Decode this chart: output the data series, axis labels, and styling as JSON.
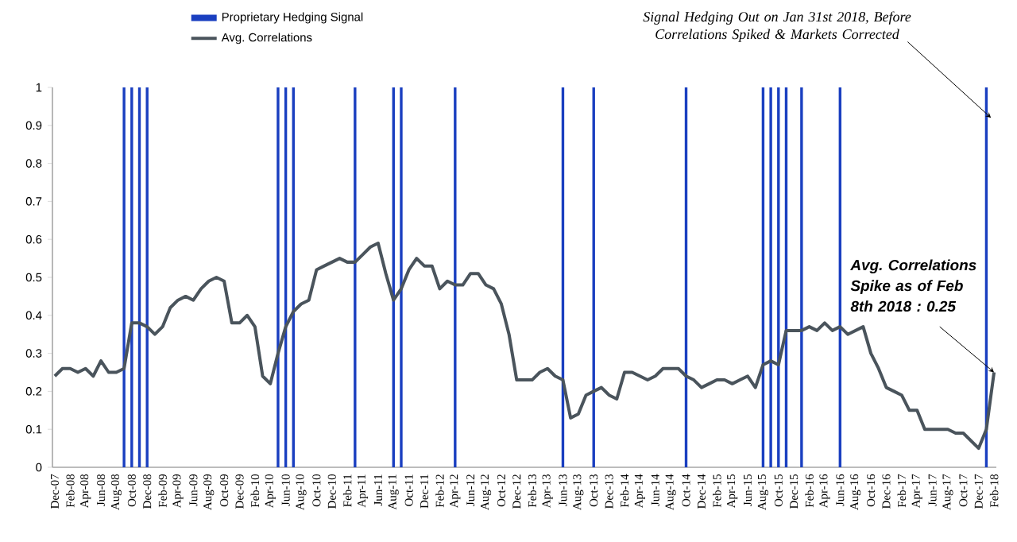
{
  "chart_data": {
    "type": "line",
    "categories": [
      "Dec-07",
      null,
      "Feb-08",
      null,
      "Apr-08",
      null,
      "Jun-08",
      null,
      "Aug-08",
      null,
      "Oct-08",
      null,
      "Dec-08",
      null,
      "Feb-09",
      null,
      "Apr-09",
      null,
      "Jun-09",
      null,
      "Aug-09",
      null,
      "Oct-09",
      null,
      "Dec-09",
      null,
      "Feb-10",
      null,
      "Apr-10",
      null,
      "Jun-10",
      null,
      "Aug-10",
      null,
      "Oct-10",
      null,
      "Dec-10",
      null,
      "Feb-11",
      null,
      "Apr-11",
      null,
      "Jun-11",
      null,
      "Aug-11",
      null,
      "Oct-11",
      null,
      "Dec-11",
      null,
      "Feb-12",
      null,
      "Apr-12",
      null,
      "Jun-12",
      null,
      "Aug-12",
      null,
      "Oct-12",
      null,
      "Dec-12",
      null,
      "Feb-13",
      null,
      "Apr-13",
      null,
      "Jun-13",
      null,
      "Aug-13",
      null,
      "Oct-13",
      null,
      "Dec-13",
      null,
      "Feb-14",
      null,
      "Apr-14",
      null,
      "Jun-14",
      null,
      "Aug-14",
      null,
      "Oct-14",
      null,
      "Dec-14",
      null,
      "Feb-15",
      null,
      "Apr-15",
      null,
      "Jun-15",
      null,
      "Aug-15",
      null,
      "Oct-15",
      null,
      "Dec-15",
      null,
      "Feb-16",
      null,
      "Apr-16",
      null,
      "Jun-16",
      null,
      "Aug-16",
      null,
      "Oct-16",
      null,
      "Dec-16",
      null,
      "Feb-17",
      null,
      "Apr-17",
      null,
      "Jun-17",
      null,
      "Aug-17",
      null,
      "Oct-17",
      null,
      "Dec-17",
      null,
      "Feb-18"
    ],
    "series": [
      {
        "name": "Proprietary Hedging Signal",
        "type": "bar",
        "color": "#1a3fc0",
        "values": [
          null,
          null,
          null,
          null,
          null,
          null,
          null,
          null,
          null,
          1,
          1,
          1,
          1,
          null,
          null,
          null,
          null,
          null,
          null,
          null,
          null,
          null,
          null,
          null,
          null,
          null,
          null,
          null,
          null,
          1,
          1,
          1,
          null,
          null,
          null,
          null,
          null,
          null,
          null,
          1,
          null,
          null,
          null,
          null,
          1,
          1,
          null,
          null,
          null,
          null,
          null,
          null,
          1,
          null,
          null,
          null,
          null,
          null,
          null,
          null,
          null,
          null,
          null,
          null,
          null,
          null,
          1,
          null,
          null,
          null,
          1,
          null,
          null,
          null,
          null,
          null,
          null,
          null,
          null,
          null,
          null,
          null,
          1,
          null,
          null,
          null,
          null,
          null,
          null,
          null,
          null,
          null,
          1,
          1,
          1,
          1,
          null,
          1,
          null,
          null,
          null,
          null,
          1,
          null,
          null,
          null,
          null,
          null,
          null,
          null,
          null,
          null,
          null,
          null,
          null,
          null,
          null,
          null,
          null,
          null,
          null,
          1,
          null
        ]
      },
      {
        "name": "Avg. Correlations",
        "color": "#4a545c",
        "values": [
          0.24,
          0.26,
          0.26,
          0.25,
          0.26,
          0.24,
          0.28,
          0.25,
          0.25,
          0.26,
          0.38,
          0.38,
          0.37,
          0.35,
          0.37,
          0.42,
          0.44,
          0.45,
          0.44,
          0.47,
          0.49,
          0.5,
          0.49,
          0.38,
          0.38,
          0.4,
          0.37,
          0.24,
          0.22,
          0.3,
          0.37,
          0.41,
          0.43,
          0.44,
          0.52,
          0.53,
          0.54,
          0.55,
          0.54,
          0.54,
          0.56,
          0.58,
          0.59,
          0.51,
          0.44,
          0.47,
          0.52,
          0.55,
          0.53,
          0.53,
          0.47,
          0.49,
          0.48,
          0.48,
          0.51,
          0.51,
          0.48,
          0.47,
          0.43,
          0.35,
          0.23,
          0.23,
          0.23,
          0.25,
          0.26,
          0.24,
          0.23,
          0.13,
          0.14,
          0.19,
          0.2,
          0.21,
          0.19,
          0.18,
          0.25,
          0.25,
          0.24,
          0.23,
          0.24,
          0.26,
          0.26,
          0.26,
          0.24,
          0.23,
          0.21,
          0.22,
          0.23,
          0.23,
          0.22,
          0.23,
          0.24,
          0.21,
          0.27,
          0.28,
          0.27,
          0.36,
          0.36,
          0.36,
          0.37,
          0.36,
          0.38,
          0.36,
          0.37,
          0.35,
          0.36,
          0.37,
          0.3,
          0.26,
          0.21,
          0.2,
          0.19,
          0.15,
          0.15,
          0.1,
          0.1,
          0.1,
          0.1,
          0.09,
          0.09,
          0.07,
          0.05,
          0.1,
          0.25
        ]
      }
    ],
    "ylim": [
      0,
      1
    ],
    "yticks": [
      0,
      0.1,
      0.2,
      0.3,
      0.4,
      0.5,
      0.6,
      0.7,
      0.8,
      0.9,
      1
    ],
    "legend": "top left",
    "annotations": [
      {
        "text": "Signal Hedging Out on Jan 31st 2018, Before Correlations Spiked & Markets Corrected",
        "x": "Feb-18",
        "y": 0.92
      },
      {
        "text": "Avg. Correlations Spike as of Feb 8th 2018 : 0.25",
        "x": "Feb-18",
        "y": 0.25
      }
    ]
  }
}
